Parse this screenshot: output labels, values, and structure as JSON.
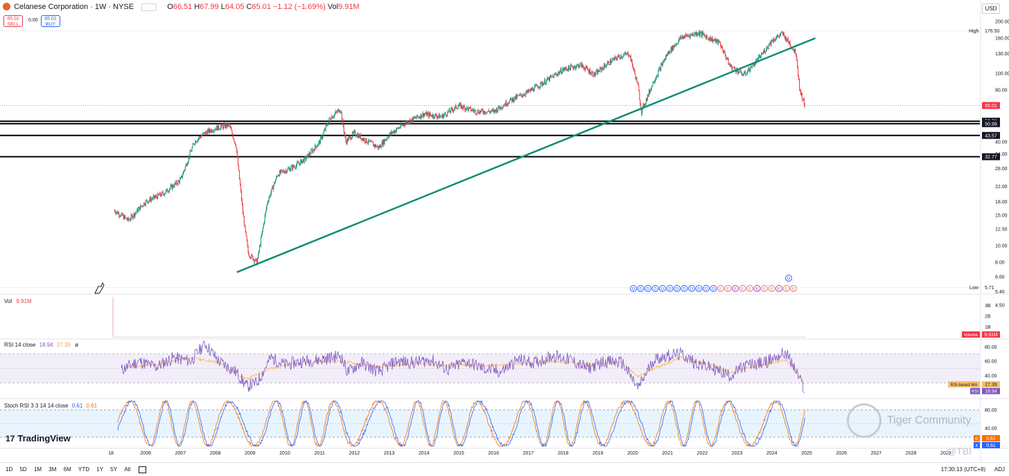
{
  "header": {
    "symbol": "Celanese Corporation · 1W · NYSE",
    "ohlc": [
      {
        "k": "O",
        "v": "66.51"
      },
      {
        "k": "H",
        "v": "67.99"
      },
      {
        "k": "L",
        "v": "64.05"
      },
      {
        "k": "C",
        "v": "65.01"
      },
      {
        "k": "",
        "v": "−1.12 (−1.69%)"
      },
      {
        "k": "Vol",
        "v": "9.91M"
      }
    ],
    "sell_price": "65.01",
    "sell_label": "SELL",
    "spread": "0.00",
    "buy_price": "65.01",
    "buy_label": "BUY",
    "currency": "USD"
  },
  "panes": {
    "volume_title": "Vol",
    "volume_value": "9.91M",
    "rsi_title": "RSI 14 close",
    "rsi_values": [
      "18.94",
      "27.39"
    ],
    "stoch_title": "Stoch RSI 3 3 14 14 close",
    "stoch_values": [
      "0.61",
      "0.61"
    ]
  },
  "brand": {
    "logo_text": "TradingView",
    "watermark": "Tiger Community",
    "watermark2": "@TBI"
  },
  "bottombar": {
    "ranges": [
      "1D",
      "5D",
      "1M",
      "3M",
      "6M",
      "YTD",
      "1Y",
      "5Y",
      "All"
    ],
    "clock": "17:30:13 (UTC+8)",
    "adj": "ADJ"
  },
  "colors": {
    "up": "#089981",
    "down": "#f23645",
    "trendline": "#0e8c74",
    "rsi": "#7e57c2",
    "rsi_ma": "#f5c26b",
    "stoch_k": "#2962ff",
    "stoch_d": "#ff6d00"
  },
  "chart_data": [
    {
      "type": "line",
      "subtype": "candlestick",
      "title": "Celanese Corporation · 1W · NYSE",
      "xlabel": "",
      "ylabel": "",
      "log_scale": true,
      "ylim": [
        4.0,
        220
      ],
      "x_ticks": [
        "18",
        "2006",
        "2007",
        "2008",
        "2009",
        "2010",
        "2011",
        "2012",
        "2013",
        "2014",
        "2015",
        "2016",
        "2017",
        "2018",
        "2019",
        "2020",
        "2021",
        "2022",
        "2023",
        "2024",
        "2025",
        "2026",
        "2027",
        "2028",
        "2029"
      ],
      "y_ticks": [
        200.0,
        160.0,
        130.0,
        100.0,
        80.0,
        40.0,
        34.0,
        28.0,
        22.0,
        18.0,
        15.0,
        12.5,
        10.0,
        8.0,
        6.6,
        5.4,
        4.5
      ],
      "y_tick_labels": [
        "200.00",
        "160.00",
        "130.00",
        "100.00",
        "80.00",
        "40.00",
        "34.00",
        "28.00",
        "22.00",
        "18.00",
        "15.00",
        "12.50",
        "10.00",
        "8.00",
        "6.60",
        "5.40",
        "4.50"
      ],
      "series": [
        {
          "name": "",
          "x": [
            2005.1,
            2005.5,
            2006.0,
            2006.5,
            2007.0,
            2007.4,
            2007.7,
            2008.0,
            2008.4,
            2008.6,
            2008.8,
            2008.95,
            2009.2,
            2009.5,
            2009.8,
            2010.3,
            2010.6,
            2011.0,
            2011.3,
            2011.6,
            2011.75,
            2012.0,
            2012.3,
            2012.7,
            2013.0,
            2013.5,
            2014.0,
            2014.5,
            2015.0,
            2015.5,
            2016.0,
            2016.5,
            2017.0,
            2017.5,
            2018.0,
            2018.5,
            2018.9,
            2019.3,
            2019.6,
            2019.9,
            2020.15,
            2020.25,
            2020.6,
            2021.0,
            2021.4,
            2021.9,
            2022.2,
            2022.5,
            2022.8,
            2023.2,
            2023.6,
            2024.0,
            2024.3,
            2024.5,
            2024.7,
            2024.8,
            2024.95
          ],
          "values": [
            16,
            14,
            18,
            20,
            24,
            40,
            45,
            48,
            50,
            38,
            15,
            9,
            8,
            18,
            26,
            29,
            32,
            40,
            55,
            62,
            40,
            45,
            41,
            37,
            44,
            52,
            58,
            56,
            65,
            60,
            60,
            70,
            78,
            90,
            105,
            112,
            98,
            115,
            125,
            130,
            85,
            60,
            90,
            130,
            162,
            172,
            160,
            150,
            110,
            98,
            120,
            155,
            170,
            150,
            130,
            80,
            65
          ]
        }
      ],
      "horizontal_levels": [
        52.7,
        50.99,
        43.57,
        32.77
      ],
      "level_labels": [
        "52.70",
        "50.99",
        "43.57",
        "32.77"
      ],
      "last_price": 65.01,
      "last_price_label": "65.01",
      "high": 176.5,
      "high_label": "High",
      "high_value_label": "176.50",
      "low": 5.71,
      "low_label": "Low",
      "low_value_label": "5.71",
      "trendline": [
        {
          "x": 2008.62,
          "y": 7.0
        },
        {
          "x": 2025.25,
          "y": 160.0
        }
      ],
      "event_markers": [
        "D",
        "D",
        "D",
        "D",
        "D",
        "D",
        "D",
        "D",
        "D",
        "D",
        "D",
        "D",
        "E",
        "E",
        "E",
        "E",
        "E",
        "E",
        "E",
        "E",
        "E",
        "E",
        "E",
        "D"
      ]
    },
    {
      "type": "bar",
      "title": "Vol",
      "ylim": [
        0,
        4
      ],
      "y_ticks": [
        3,
        2,
        1
      ],
      "y_tick_labels": [
        "3B",
        "2B",
        "1B"
      ],
      "series": [
        {
          "name": "Volume",
          "x": [
            2005.05,
            2024.95
          ],
          "values": [
            3.8,
            0.00991
          ]
        }
      ],
      "last_label": "9.91M"
    },
    {
      "type": "line",
      "title": "RSI 14 close",
      "ylim": [
        10,
        90
      ],
      "y_ticks": [
        80.0,
        60.0,
        40.0
      ],
      "y_tick_labels": [
        "80.00",
        "60.00",
        "40.00"
      ],
      "bands": [
        70,
        30
      ],
      "series": [
        {
          "name": "RSI",
          "x": [
            2005.3,
            2005.8,
            2006.3,
            2006.8,
            2007.3,
            2007.7,
            2008.1,
            2008.6,
            2008.9,
            2009.2,
            2009.6,
            2010.0,
            2010.5,
            2011.0,
            2011.6,
            2011.8,
            2012.2,
            2012.7,
            2013.2,
            2013.7,
            2014.2,
            2014.7,
            2015.2,
            2015.7,
            2016.2,
            2016.7,
            2017.2,
            2017.7,
            2018.2,
            2018.7,
            2019.2,
            2019.7,
            2020.15,
            2020.6,
            2021.0,
            2021.4,
            2021.8,
            2022.3,
            2022.8,
            2023.3,
            2023.8,
            2024.2,
            2024.4,
            2024.6,
            2024.8,
            2024.95
          ],
          "values": [
            48,
            60,
            52,
            65,
            60,
            85,
            60,
            45,
            25,
            30,
            65,
            55,
            60,
            62,
            68,
            45,
            58,
            45,
            60,
            58,
            62,
            48,
            60,
            50,
            45,
            62,
            58,
            68,
            62,
            50,
            60,
            58,
            22,
            62,
            68,
            70,
            58,
            50,
            40,
            55,
            58,
            68,
            72,
            55,
            35,
            18.94
          ]
        },
        {
          "name": "RSI-based MA",
          "x": [
            2005.3,
            2006.3,
            2007.3,
            2008.1,
            2008.9,
            2009.6,
            2010.5,
            2011.6,
            2012.7,
            2013.7,
            2014.7,
            2015.7,
            2016.7,
            2017.7,
            2018.7,
            2019.7,
            2020.15,
            2020.6,
            2021.4,
            2022.3,
            2022.8,
            2023.8,
            2024.4,
            2024.7,
            2024.95
          ],
          "values": [
            50,
            55,
            65,
            58,
            35,
            50,
            58,
            60,
            52,
            56,
            55,
            54,
            56,
            60,
            56,
            58,
            38,
            50,
            65,
            55,
            45,
            55,
            62,
            45,
            27.39
          ]
        }
      ],
      "labels": [
        {
          "name": "RSI-based MA",
          "value": "27.39"
        },
        {
          "name": "RSI",
          "value": "18.94"
        }
      ]
    },
    {
      "type": "line",
      "title": "Stoch RSI 3 3 14 14 close",
      "ylim": [
        0,
        100
      ],
      "y_ticks": [
        80.0,
        40.0
      ],
      "y_tick_labels": [
        "80.00",
        "40.00"
      ],
      "bands": [
        80,
        20
      ],
      "series": [
        {
          "name": "K",
          "x": [],
          "values": []
        },
        {
          "name": "D",
          "x": [],
          "values": []
        }
      ],
      "labels": [
        {
          "name": "D",
          "value": "0.61"
        },
        {
          "name": "K",
          "value": "0.61"
        }
      ],
      "note_values": {
        "k_last": 0.61,
        "d_last": 0.61
      }
    }
  ]
}
